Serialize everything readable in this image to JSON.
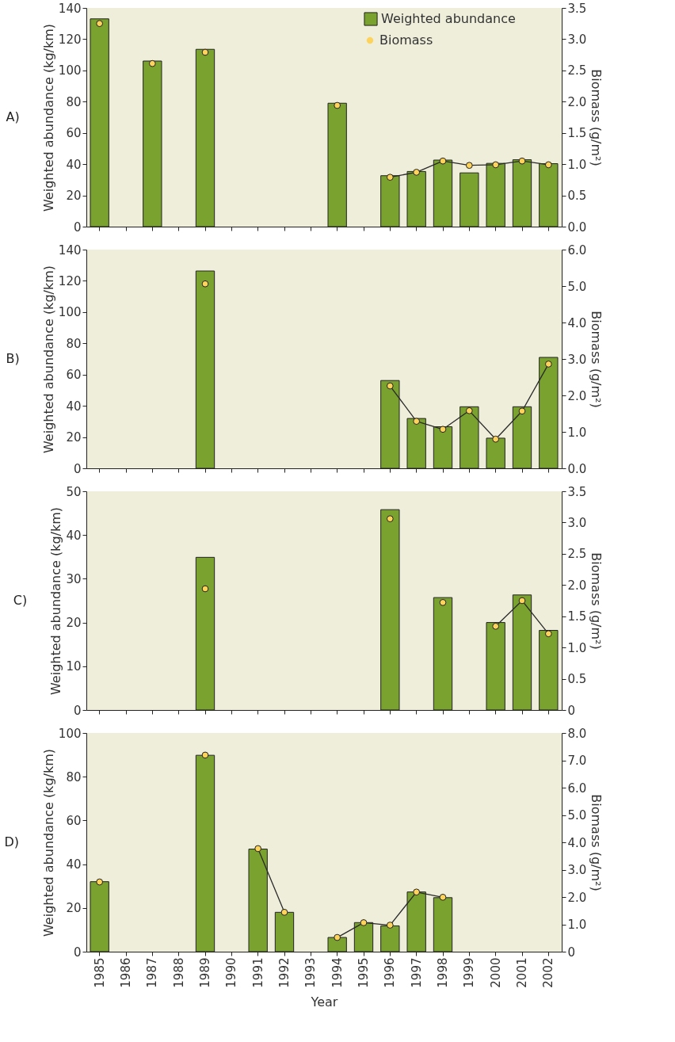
{
  "chart_data": [
    {
      "type": "bar",
      "title": "A)",
      "ylabel": "Weighted abundance (kg/km)",
      "y2label": "Biomass (g/m²)",
      "categories": [
        "1985",
        "1986",
        "1987",
        "1988",
        "1989",
        "1990",
        "1991",
        "1992",
        "1993",
        "1994",
        "1995",
        "1996",
        "1997",
        "1998",
        "1999",
        "2000",
        "2001",
        "2002"
      ],
      "series": [
        {
          "name": "Weighted abundance",
          "color": "#7aa22e",
          "values": [
            133,
            null,
            106,
            null,
            113.5,
            null,
            null,
            null,
            null,
            79,
            null,
            32.6,
            35.3,
            42.6,
            34.4,
            40.5,
            42.8,
            40.3
          ]
        },
        {
          "name": "Biomass",
          "type": "line",
          "axis": "y2",
          "color": "#fdd35c",
          "values": [
            3.25,
            null,
            2.61,
            null,
            2.79,
            null,
            null,
            null,
            null,
            1.94,
            null,
            0.79,
            0.87,
            1.05,
            0.98,
            0.99,
            1.05,
            0.99
          ]
        }
      ],
      "ylim": [
        0,
        140
      ],
      "yticks": [
        0,
        20,
        40,
        60,
        80,
        100,
        120,
        140
      ],
      "y2lim": [
        0,
        3.5
      ],
      "y2ticks": [
        {
          "value": 0,
          "label": "0.0"
        },
        0.5,
        {
          "value": 1,
          "label": "1.0"
        },
        1.5,
        {
          "value": 2,
          "label": "2.0"
        },
        2.5,
        {
          "value": 3,
          "label": "3.0"
        },
        3.5
      ],
      "legend": "top right",
      "marker": "circle",
      "tick_labels": "y",
      "grid": false
    },
    {
      "type": "bar",
      "title": "B)",
      "ylabel": "Weighted abundance (kg/km)",
      "y2label": "Biomass (g/m²)",
      "categories": [
        "1985",
        "1986",
        "1987",
        "1988",
        "1989",
        "1990",
        "1991",
        "1992",
        "1993",
        "1994",
        "1995",
        "1996",
        "1997",
        "1998",
        "1999",
        "2000",
        "2001",
        "2002"
      ],
      "series": [
        {
          "color": "#7aa22e",
          "values": [
            null,
            null,
            null,
            null,
            126.3,
            null,
            null,
            null,
            null,
            null,
            null,
            56.2,
            31.9,
            26.6,
            39.4,
            19.3,
            39.4,
            71.0
          ]
        },
        {
          "type": "line",
          "axis": "y2",
          "color": "#fdd35c",
          "values": [
            null,
            null,
            null,
            null,
            5.06,
            null,
            null,
            null,
            null,
            null,
            null,
            2.26,
            1.29,
            1.07,
            1.58,
            0.8,
            1.57,
            2.86
          ]
        }
      ],
      "ylim": [
        0,
        140
      ],
      "yticks": [
        0,
        20,
        40,
        60,
        80,
        100,
        120,
        140
      ],
      "y2lim": [
        0,
        6
      ],
      "y2ticks": [
        {
          "value": 0,
          "label": "0.0"
        },
        {
          "value": 1,
          "label": "1.0"
        },
        {
          "value": 2,
          "label": "2.0"
        },
        {
          "value": 3,
          "label": "3.0"
        },
        {
          "value": 4,
          "label": "4.0"
        },
        {
          "value": 5,
          "label": "5.0"
        },
        {
          "value": 6,
          "label": "6.0"
        }
      ],
      "marker": "circle",
      "tick_labels": "y",
      "grid": false
    },
    {
      "type": "bar",
      "title": "C)",
      "ylabel": "Weighted abundance (kg/km)",
      "y2label": "Biomass (g/m²)",
      "categories": [
        "1985",
        "1986",
        "1987",
        "1988",
        "1989",
        "1990",
        "1991",
        "1992",
        "1993",
        "1994",
        "1995",
        "1996",
        "1997",
        "1998",
        "1999",
        "2000",
        "2001",
        "2002"
      ],
      "series": [
        {
          "color": "#7aa22e",
          "values": [
            null,
            null,
            null,
            null,
            34.9,
            null,
            null,
            null,
            null,
            null,
            null,
            45.8,
            null,
            25.7,
            null,
            20.0,
            26.3,
            18.2
          ]
        },
        {
          "type": "line",
          "axis": "y2",
          "color": "#fdd35c",
          "values": [
            null,
            null,
            null,
            null,
            1.94,
            null,
            null,
            null,
            null,
            null,
            null,
            3.06,
            null,
            1.72,
            null,
            1.34,
            1.75,
            1.22
          ]
        }
      ],
      "ylim": [
        0,
        50
      ],
      "yticks": [
        0,
        10,
        20,
        30,
        40,
        50
      ],
      "y2lim": [
        0,
        3.5
      ],
      "y2ticks": [
        0,
        0.5,
        {
          "value": 1,
          "label": "1.0"
        },
        1.5,
        {
          "value": 2,
          "label": "2.0"
        },
        2.5,
        {
          "value": 3,
          "label": "3.0"
        },
        3.5
      ],
      "marker": "circle",
      "tick_labels": "y",
      "grid": false
    },
    {
      "type": "bar",
      "title": "D)",
      "xlabel": "Year",
      "ylabel": "Weighted abundance (kg/km)",
      "y2label": "Biomass (g/m²)",
      "categories": [
        "1985",
        "1986",
        "1987",
        "1988",
        "1989",
        "1990",
        "1991",
        "1992",
        "1993",
        "1994",
        "1995",
        "1996",
        "1997",
        "1998",
        "1999",
        "2000",
        "2001",
        "2002"
      ],
      "series": [
        {
          "color": "#7aa22e",
          "values": [
            32.0,
            null,
            null,
            null,
            89.8,
            null,
            46.9,
            18.0,
            null,
            6.5,
            13.3,
            11.8,
            27.3,
            24.7,
            null,
            null,
            null,
            null
          ]
        },
        {
          "type": "line",
          "axis": "y2",
          "color": "#fdd35c",
          "values": [
            2.55,
            null,
            null,
            null,
            7.19,
            null,
            3.77,
            1.44,
            null,
            0.52,
            1.06,
            0.97,
            2.18,
            1.99,
            null,
            null,
            null,
            null
          ]
        }
      ],
      "ylim": [
        0,
        100
      ],
      "yticks": [
        0,
        20,
        40,
        60,
        80,
        100
      ],
      "y2lim": [
        0,
        8
      ],
      "y2ticks": [
        0,
        {
          "value": 1,
          "label": "1.0"
        },
        {
          "value": 2,
          "label": "2.0"
        },
        {
          "value": 3,
          "label": "3.0"
        },
        {
          "value": 4,
          "label": "4.0"
        },
        {
          "value": 5,
          "label": "5.0"
        },
        {
          "value": 6,
          "label": "6.0"
        },
        {
          "value": 7,
          "label": "7.0"
        },
        {
          "value": 8,
          "label": "8.0"
        }
      ],
      "marker": "circle",
      "grid": false
    }
  ]
}
